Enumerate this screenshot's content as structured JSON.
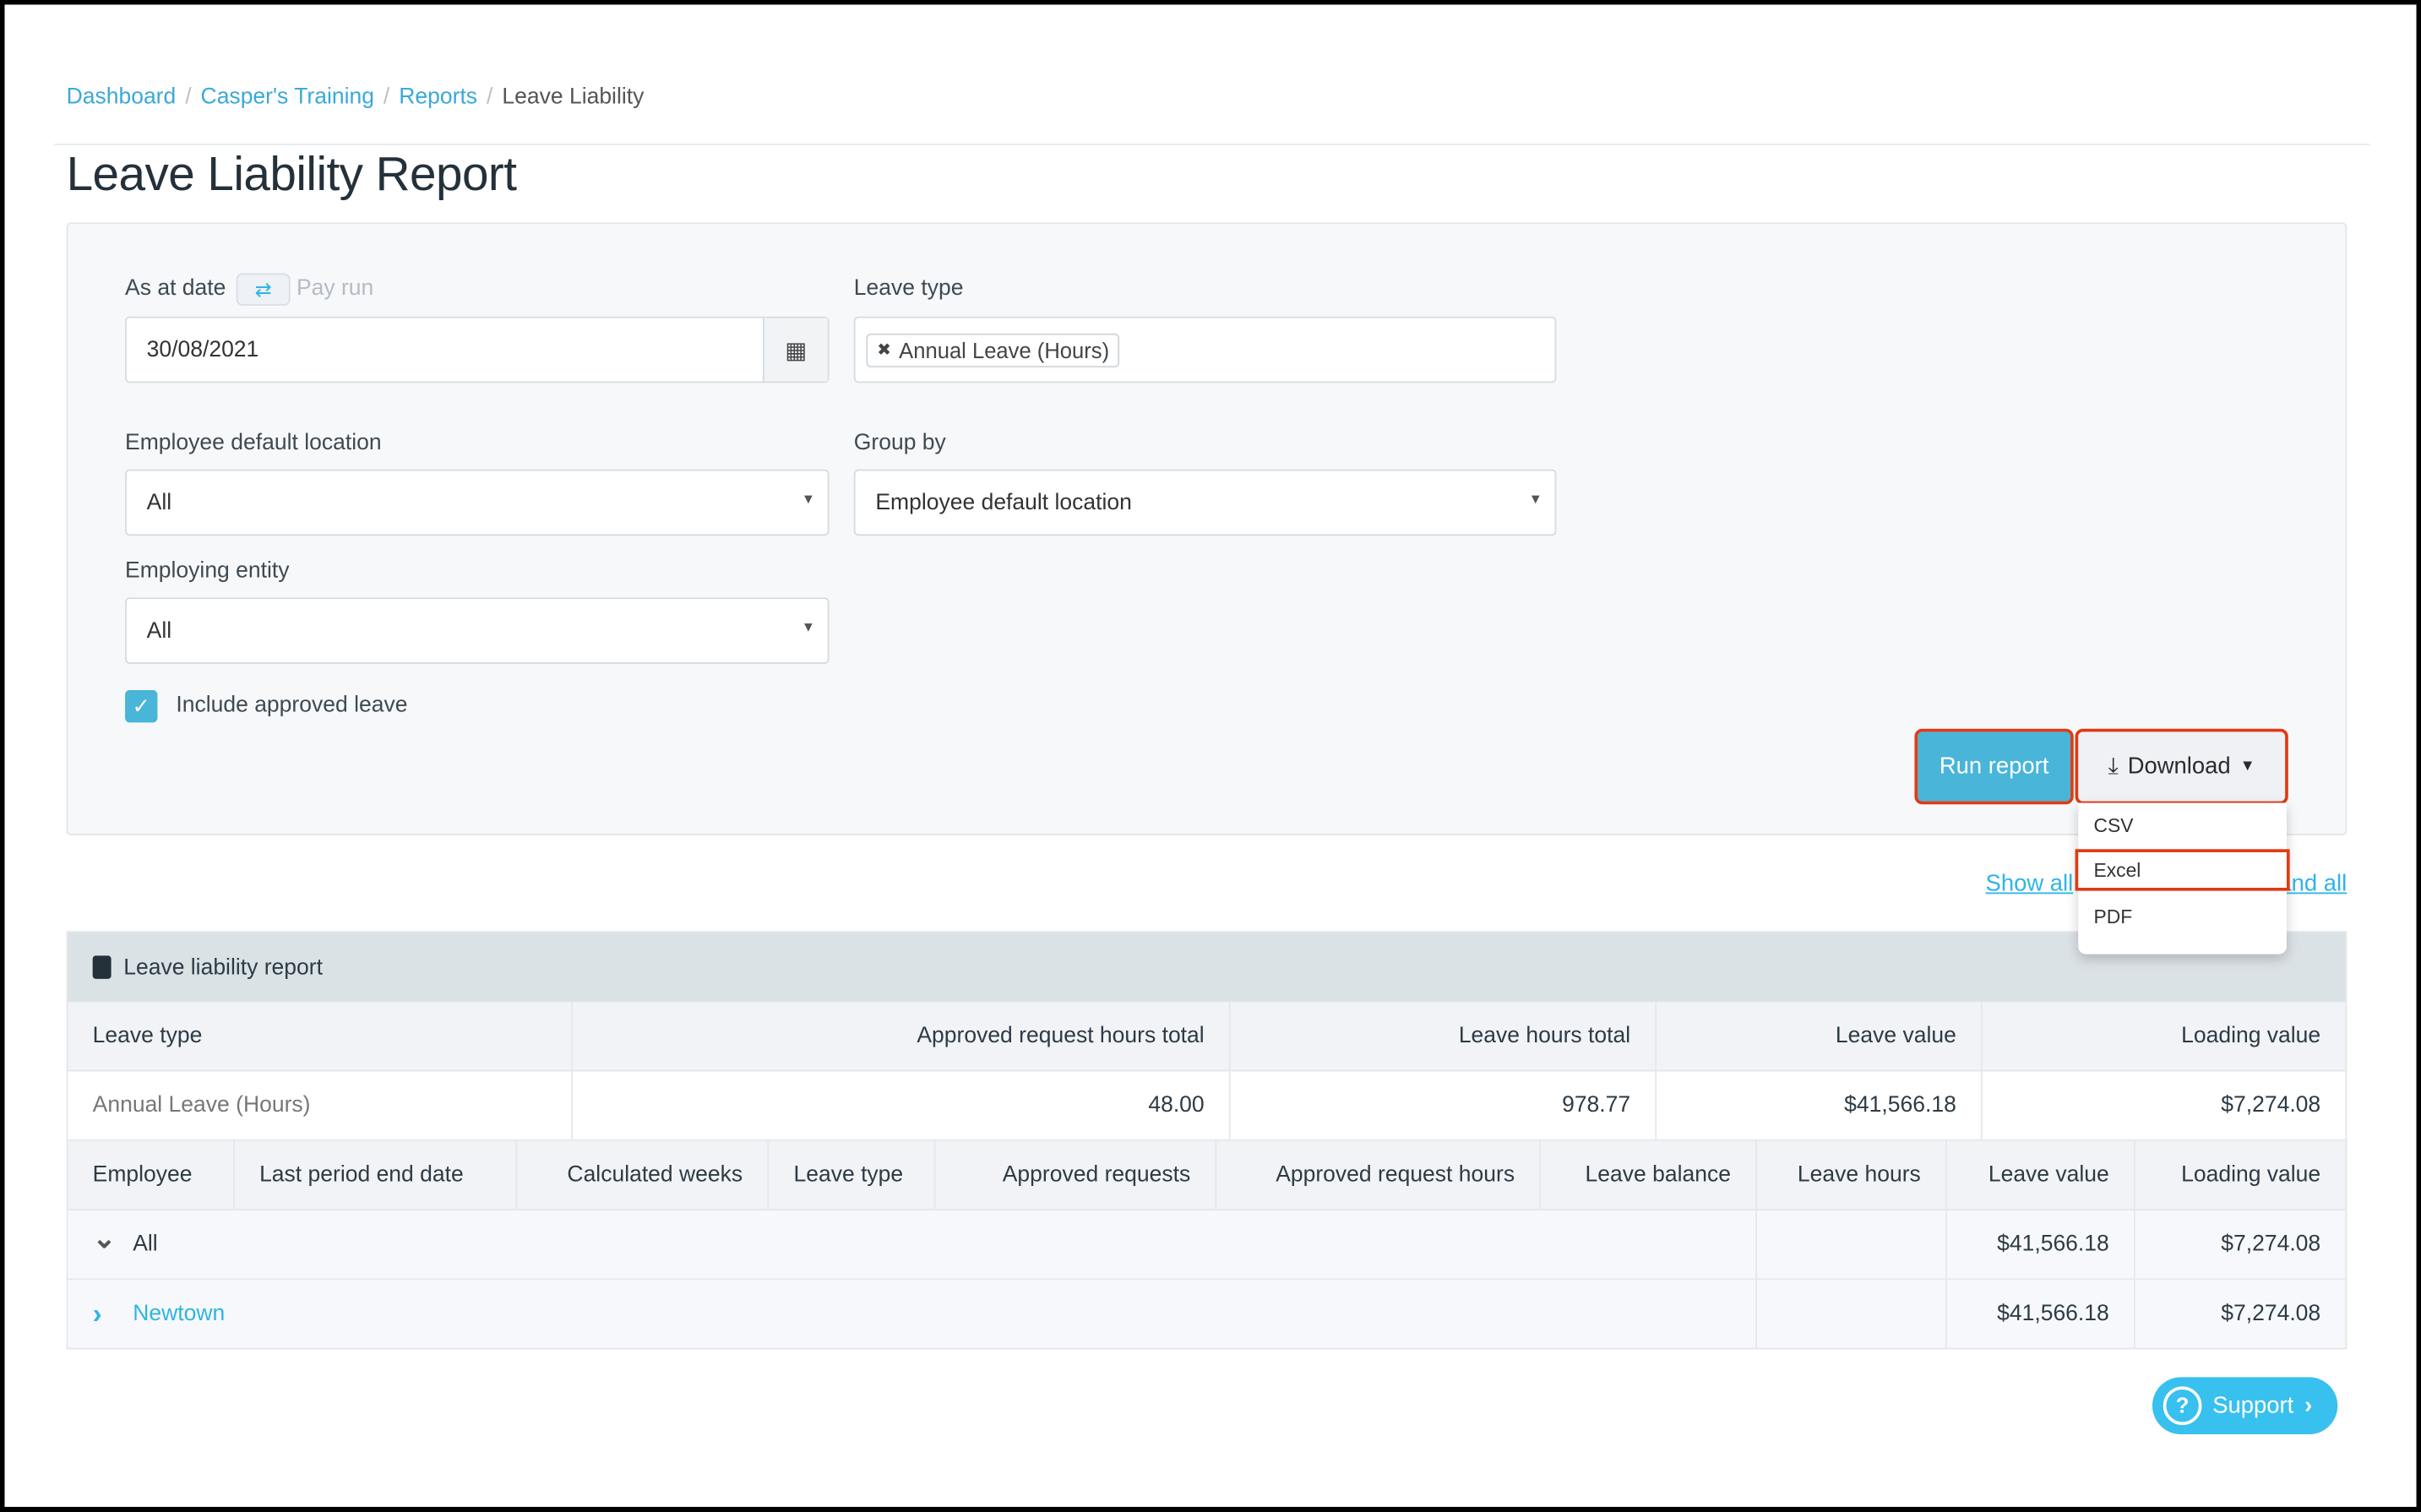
{
  "breadcrumb": [
    "Dashboard",
    "Casper's Training",
    "Reports",
    "Leave Liability"
  ],
  "page_title": "Leave Liability Report",
  "filters": {
    "as_at_date_label": "As at date",
    "pay_run_toggle": "Pay run",
    "as_at_date_value": "30/08/2021",
    "leave_type_label": "Leave type",
    "leave_type_tag": "Annual Leave (Hours)",
    "location_label": "Employee default location",
    "location_value": "All",
    "group_by_label": "Group by",
    "group_by_value": "Employee default location",
    "entity_label": "Employing entity",
    "entity_value": "All",
    "include_approved_label": "Include approved leave",
    "include_approved_checked": true
  },
  "actions": {
    "run_report": "Run report",
    "download": "Download",
    "download_options": [
      "CSV",
      "Excel",
      "PDF"
    ],
    "show_all": "Show all",
    "expand_all": "Expand all"
  },
  "report": {
    "title": "Leave liability report",
    "summary_headers": [
      "Leave type",
      "Approved request hours total",
      "Leave hours total",
      "Leave value",
      "Loading value"
    ],
    "summary_row": [
      "Annual Leave (Hours)",
      "48.00",
      "978.77",
      "$41,566.18",
      "$7,274.08"
    ],
    "detail_headers": [
      "Employee",
      "Last period end date",
      "Calculated weeks",
      "Leave type",
      "Approved requests",
      "Approved request hours",
      "Leave balance",
      "Leave hours",
      "Leave value",
      "Loading value"
    ],
    "groups": [
      {
        "name": "All",
        "leave_value": "$41,566.18",
        "loading_value": "$7,274.08",
        "expanded": true
      },
      {
        "name": "Newtown",
        "leave_value": "$41,566.18",
        "loading_value": "$7,274.08",
        "expanded": false
      }
    ]
  },
  "support": "Support",
  "colors": {
    "accent": "#48b5d9",
    "link": "#3aa9d8",
    "highlight": "#e03a12"
  }
}
